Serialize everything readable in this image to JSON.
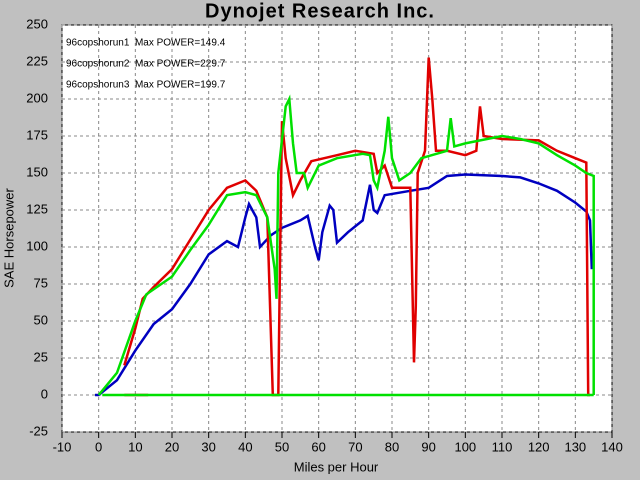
{
  "chart_data": {
    "type": "line",
    "title": "Dynojet Research Inc.",
    "x_label": "Miles per Hour",
    "y_label": "SAE Horsepower",
    "xlim": [
      -10,
      140
    ],
    "xticks": [
      -10,
      0,
      10,
      20,
      30,
      40,
      50,
      60,
      70,
      80,
      90,
      100,
      110,
      120,
      130,
      140
    ],
    "ylim": [
      -25,
      250
    ],
    "yticks": [
      -25,
      0,
      25,
      50,
      75,
      100,
      125,
      150,
      175,
      200,
      225,
      250
    ],
    "grid": true,
    "series": [
      {
        "name": "96copshorun1  Max POWER=149.4",
        "color": "#0000c0",
        "x": [
          -1,
          0,
          5,
          10,
          15,
          20,
          25,
          30,
          35,
          38,
          40,
          41,
          43,
          44,
          47,
          50,
          55,
          57,
          59,
          60,
          61,
          63,
          64,
          65,
          68,
          72,
          74,
          75,
          76,
          78,
          85,
          90,
          95,
          100,
          110,
          115,
          120,
          125,
          130,
          133,
          134,
          134.5
        ],
        "values": [
          0,
          0,
          10,
          30,
          48,
          58,
          75,
          95,
          104,
          100,
          120,
          129,
          120,
          100,
          108,
          113,
          118,
          121,
          100,
          91,
          110,
          128,
          125,
          103,
          110,
          118,
          142,
          125,
          123,
          135,
          138,
          140,
          148,
          149,
          148,
          147,
          143,
          138,
          130,
          124,
          118,
          85
        ]
      },
      {
        "name": "96copshorun2  Max POWER=229.7",
        "color": "#e00000",
        "x": [
          7,
          13.5,
          null,
          7,
          10,
          12,
          15,
          20,
          25,
          30,
          35,
          40,
          43,
          46,
          47.5,
          47.5,
          49,
          49.5,
          50,
          51,
          53,
          55,
          58,
          65,
          70,
          75,
          76,
          78,
          80,
          82,
          85,
          86,
          86.5,
          87,
          89,
          90,
          91,
          92,
          95,
          100,
          103,
          104,
          105,
          110,
          120,
          125,
          130,
          133,
          133.5,
          134
        ],
        "values": [
          0,
          0,
          null,
          20,
          45,
          65,
          73,
          85,
          105,
          125,
          140,
          145,
          138,
          120,
          0,
          0,
          0,
          100,
          185,
          160,
          135,
          145,
          158,
          162,
          165,
          163,
          150,
          155,
          140,
          140,
          140,
          22,
          60,
          150,
          165,
          228,
          200,
          165,
          165,
          162,
          165,
          195,
          175,
          173,
          172,
          165,
          160,
          157,
          0,
          0
        ]
      },
      {
        "name": "96copshorun3  Max POWER=199.7",
        "color": "#00e000",
        "x": [
          1,
          135,
          null,
          0,
          5,
          10,
          13,
          20,
          25,
          30,
          35,
          40,
          43,
          46,
          48,
          48.5,
          49,
          51,
          52,
          53,
          54,
          56,
          57,
          60,
          65,
          72,
          74,
          75,
          76,
          78,
          79,
          80,
          82,
          85,
          88,
          95,
          96,
          97,
          100,
          110,
          115,
          120,
          125,
          130,
          133,
          135,
          135
        ],
        "values": [
          0,
          0,
          null,
          0,
          15,
          50,
          68,
          80,
          98,
          115,
          135,
          137,
          135,
          120,
          85,
          65,
          150,
          195,
          200,
          170,
          150,
          150,
          140,
          155,
          160,
          163,
          162,
          145,
          140,
          165,
          188,
          160,
          145,
          150,
          160,
          165,
          187,
          168,
          170,
          175,
          173,
          170,
          162,
          155,
          150,
          148,
          0
        ]
      }
    ]
  }
}
